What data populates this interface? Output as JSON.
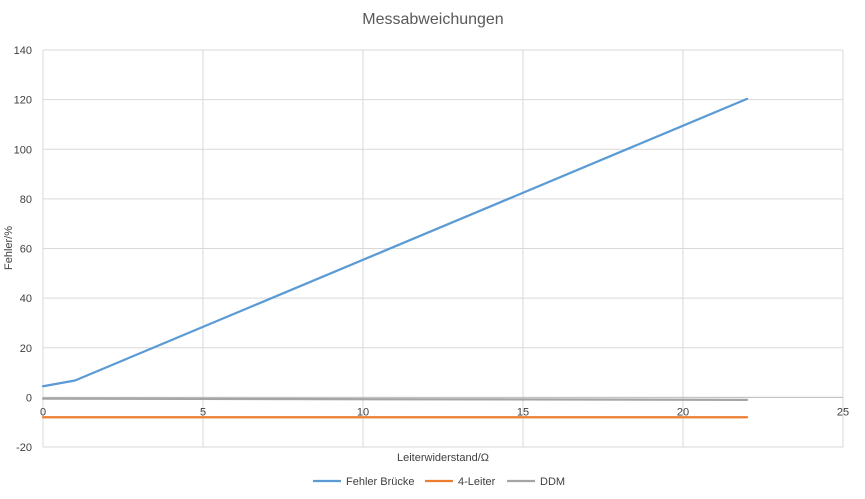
{
  "chart_data": {
    "type": "line",
    "title": "Messabweichungen",
    "xlabel": "Leiterwiderstand/Ω",
    "ylabel": "Fehler/%",
    "xlim": [
      0,
      25
    ],
    "ylim": [
      -20,
      140
    ],
    "x_ticks": [
      0,
      5,
      10,
      15,
      20,
      25
    ],
    "y_ticks": [
      -20,
      0,
      20,
      40,
      60,
      80,
      100,
      120,
      140
    ],
    "x_tick_labels": [
      "0",
      "5",
      "10",
      "15",
      "20",
      "25"
    ],
    "y_tick_labels": [
      "-20",
      "0",
      "20",
      "40",
      "60",
      "80",
      "100",
      "120",
      "140"
    ],
    "grid": true,
    "legend_position": "bottom",
    "series": [
      {
        "name": "Fehler Brücke",
        "color": "#5B9BD5",
        "points": [
          [
            0,
            4.5
          ],
          [
            1,
            6.8
          ],
          [
            22,
            120.3
          ]
        ]
      },
      {
        "name": "4-Leiter",
        "color": "#ED7D31",
        "points": [
          [
            0,
            -8.0
          ],
          [
            22,
            -8.0
          ]
        ]
      },
      {
        "name": "DDM",
        "color": "#A5A5A5",
        "points": [
          [
            0,
            -0.5
          ],
          [
            22,
            -1.0
          ]
        ]
      }
    ]
  }
}
